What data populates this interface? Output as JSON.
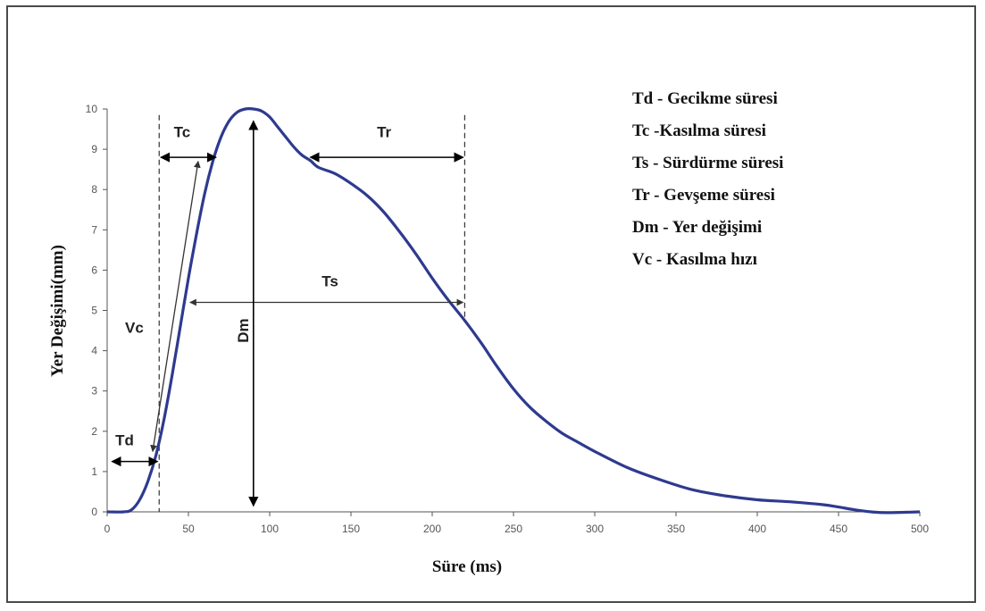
{
  "chart_data": {
    "type": "line",
    "xlabel": "Süre (ms)",
    "ylabel": "Yer Değişimi(mm)",
    "xlim": [
      0,
      500
    ],
    "ylim": [
      0,
      10
    ],
    "x_ticks": [
      0,
      50,
      100,
      150,
      200,
      250,
      300,
      350,
      400,
      450,
      500
    ],
    "y_ticks": [
      0,
      1,
      2,
      3,
      4,
      5,
      6,
      7,
      8,
      9,
      10
    ],
    "grid": false,
    "curve_color": "#2e3a8f",
    "series": [
      {
        "x": [
          0,
          10,
          15,
          20,
          25,
          30,
          35,
          40,
          45,
          50,
          55,
          60,
          65,
          70,
          75,
          80,
          85,
          90,
          95,
          100,
          105,
          110,
          115,
          120,
          125,
          130,
          140,
          150,
          160,
          170,
          180,
          190,
          200,
          210,
          220,
          230,
          240,
          250,
          260,
          270,
          280,
          290,
          300,
          320,
          340,
          360,
          380,
          400,
          420,
          440,
          450,
          460,
          470,
          480,
          500
        ],
        "y": [
          0,
          0,
          0.05,
          0.3,
          0.75,
          1.4,
          2.3,
          3.4,
          4.6,
          5.8,
          6.9,
          7.9,
          8.7,
          9.3,
          9.7,
          9.92,
          10.0,
          10.0,
          9.95,
          9.8,
          9.55,
          9.3,
          9.05,
          8.85,
          8.72,
          8.55,
          8.4,
          8.15,
          7.85,
          7.45,
          6.95,
          6.4,
          5.8,
          5.25,
          4.75,
          4.2,
          3.6,
          3.05,
          2.6,
          2.25,
          1.95,
          1.72,
          1.5,
          1.1,
          0.8,
          0.55,
          0.4,
          0.3,
          0.25,
          0.18,
          0.12,
          0.05,
          0,
          -0.02,
          0
        ]
      }
    ],
    "annotations": {
      "td": "Td",
      "tc": "Tc",
      "tr": "Tr",
      "ts": "Ts",
      "dm": "Dm",
      "vc": "Vc"
    },
    "legend_placement": "top-right",
    "legend": [
      "Td - Gecikme süresi",
      "Tc -Kasılma süresi",
      "Ts - Sürdürme süresi",
      "Tr - Gevşeme süresi",
      "Dm - Yer değişimi",
      "Vc - Kasılma hızı"
    ]
  }
}
